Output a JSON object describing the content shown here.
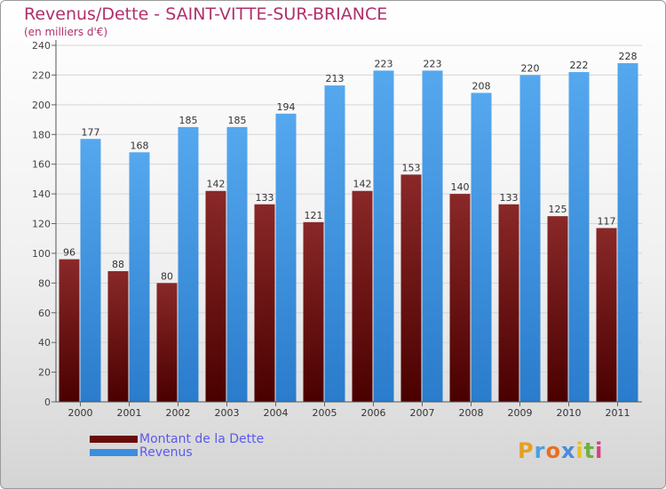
{
  "title": "Revenus/Dette - SAINT-VITTE-SUR-BRIANCE",
  "subtitle": "(en milliers d'€)",
  "logo": {
    "letters": [
      "P",
      "r",
      "o",
      "x",
      "i",
      "t",
      "i"
    ],
    "colors": [
      "#e8a020",
      "#4aa0e0",
      "#e87020",
      "#4a8adc",
      "#e8c020",
      "#70b040",
      "#d84080"
    ]
  },
  "colors": {
    "dette": "#7a1515",
    "revenus": "#3a8ee0",
    "title": "#b0306a",
    "legend_text": "#5a5af0"
  },
  "legend": [
    {
      "label": "Montant de la Dette",
      "color": "#6a0a0a"
    },
    {
      "label": "Revenus",
      "color": "#3a8ee0"
    }
  ],
  "chart_data": {
    "type": "bar",
    "title": "Revenus/Dette - SAINT-VITTE-SUR-BRIANCE",
    "ylabel": "(en milliers d'€)",
    "categories": [
      "2000",
      "2001",
      "2002",
      "2003",
      "2004",
      "2005",
      "2006",
      "2007",
      "2008",
      "2009",
      "2010",
      "2011"
    ],
    "series": [
      {
        "name": "Montant de la Dette",
        "values": [
          96,
          88,
          80,
          142,
          133,
          121,
          142,
          153,
          140,
          133,
          125,
          117
        ]
      },
      {
        "name": "Revenus",
        "values": [
          177,
          168,
          185,
          185,
          194,
          213,
          223,
          223,
          208,
          220,
          222,
          228
        ]
      }
    ],
    "ylim": [
      0,
      240
    ],
    "yticks": [
      0,
      20,
      40,
      60,
      80,
      100,
      120,
      140,
      160,
      180,
      200,
      220,
      240
    ],
    "grid": true,
    "legend_position": "bottom-left"
  }
}
